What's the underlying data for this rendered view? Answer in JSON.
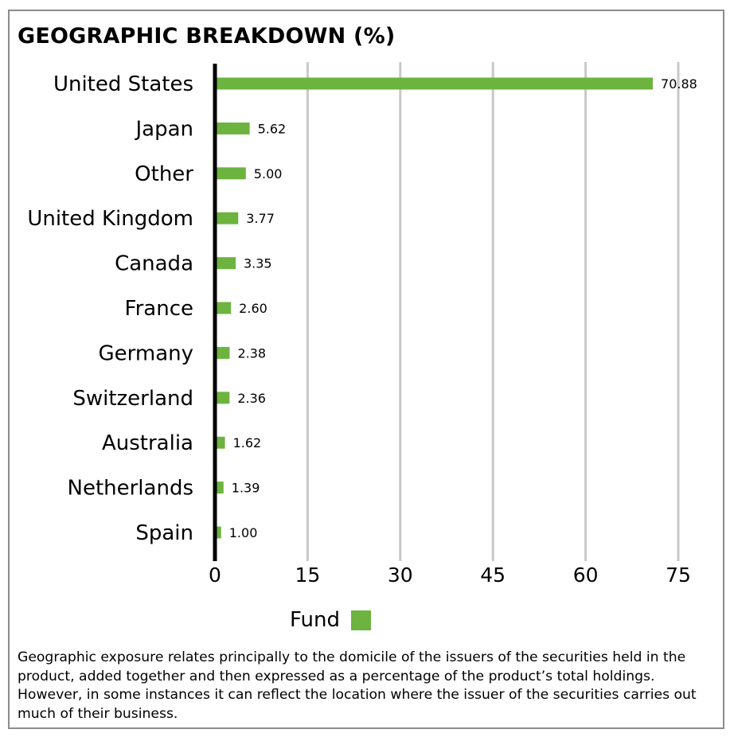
{
  "chart_data": {
    "type": "bar",
    "orientation": "horizontal",
    "title": "GEOGRAPHIC BREAKDOWN (%)",
    "categories": [
      "United States",
      "Japan",
      "Other",
      "United Kingdom",
      "Canada",
      "France",
      "Germany",
      "Switzerland",
      "Australia",
      "Netherlands",
      "Spain"
    ],
    "series": [
      {
        "name": "Fund",
        "values": [
          70.88,
          5.62,
          5.0,
          3.77,
          3.35,
          2.6,
          2.38,
          2.36,
          1.62,
          1.39,
          1.0
        ],
        "value_labels": [
          "70.88",
          "5.62",
          "5.00",
          "3.77",
          "3.35",
          "2.60",
          "2.38",
          "2.36",
          "1.62",
          "1.39",
          "1.00"
        ],
        "color": "#6db33f"
      }
    ],
    "xlim": [
      0,
      75
    ],
    "x_ticks": [
      0,
      15,
      30,
      45,
      60,
      75
    ],
    "x_tick_labels": [
      "0",
      "15",
      "30",
      "45",
      "60",
      "75"
    ],
    "grid": "vertical",
    "grid_color": "#c8c8c8",
    "axis_color": "#000000",
    "legend": "bottom-center"
  },
  "footnote": "Geographic exposure relates principally to the domicile of the issuers of the securities held in the product, added together and then expressed as a percentage of the product’s total holdings. However, in some instances it can reflect the location where the issuer of the securities carries out much of their business."
}
